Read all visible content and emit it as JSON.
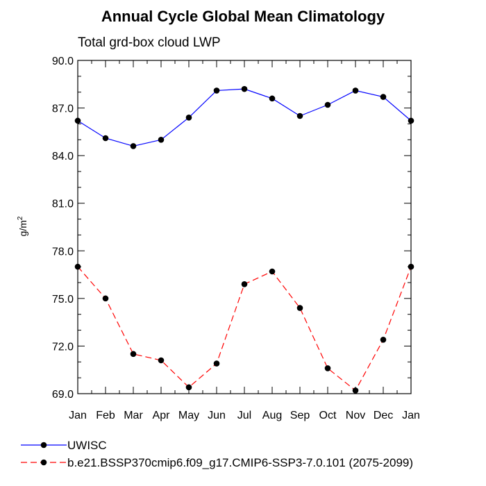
{
  "chart_data": {
    "type": "line",
    "title": "Annual Cycle Global Mean Climatology",
    "subtitle": "Total grd-box cloud LWP",
    "xlabel": "",
    "ylabel": "g/m",
    "ylabel_superscript": "2",
    "ylim": [
      69.0,
      90.0
    ],
    "yticks": [
      "90.0",
      "87.0",
      "84.0",
      "81.0",
      "78.0",
      "75.0",
      "72.0",
      "69.0"
    ],
    "ytick_values": [
      90,
      87,
      84,
      81,
      78,
      75,
      72,
      69
    ],
    "categories": [
      "Jan",
      "Feb",
      "Mar",
      "Apr",
      "May",
      "Jun",
      "Jul",
      "Aug",
      "Sep",
      "Oct",
      "Nov",
      "Dec",
      "Jan"
    ],
    "grid": false,
    "legend_position": "bottom-left",
    "series": [
      {
        "name": "UWISC",
        "color": "#0000ff",
        "line_style": "solid",
        "marker": "filled-circle",
        "values": [
          86.2,
          85.1,
          84.6,
          85.0,
          86.4,
          88.1,
          88.2,
          87.6,
          86.5,
          87.2,
          88.1,
          87.7,
          86.2
        ]
      },
      {
        "name": "b.e21.BSSP370cmip6.f09_g17.CMIP6-SSP3-7.0.101 (2075-2099)",
        "color": "#ff0000",
        "line_style": "dashed",
        "marker": "filled-circle",
        "values": [
          77.0,
          75.0,
          71.5,
          71.1,
          69.4,
          70.9,
          75.9,
          76.7,
          74.4,
          70.6,
          69.2,
          72.4,
          77.0
        ]
      }
    ]
  }
}
